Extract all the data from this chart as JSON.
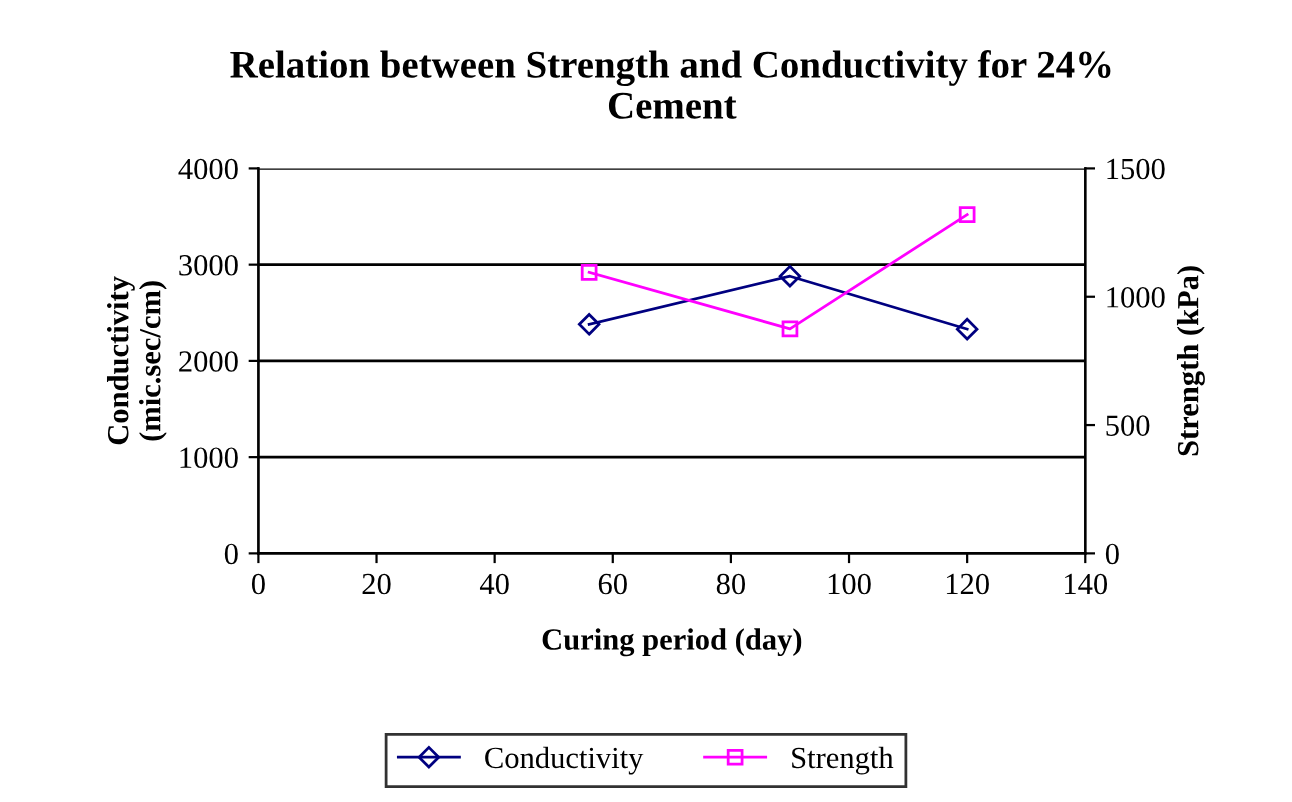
{
  "chart_data": {
    "type": "line",
    "title": "Relation between Strength and Conductivity for 24%\nCement",
    "xlabel": "Curing period (day)",
    "ylabel": "Conductivity\n(mic.sec/cm)",
    "y2label": "Strength (kPa)",
    "series": [
      {
        "name": "Conductivity",
        "color": "#000080",
        "x": [
          56,
          90,
          120
        ],
        "values": [
          2380,
          2880,
          2330
        ],
        "marker": "diamond"
      },
      {
        "name": "Strength",
        "color": "#ff00ff",
        "x": [
          56,
          90,
          120
        ],
        "values": [
          1095,
          875,
          1320
        ],
        "marker": "square",
        "axis": "y2"
      }
    ],
    "xlim": [
      0,
      140
    ],
    "xticks": [
      0,
      20,
      40,
      60,
      80,
      100,
      120,
      140
    ],
    "ylim": [
      0,
      4000
    ],
    "yticks": [
      0,
      1000,
      2000,
      3000,
      4000
    ],
    "y2lim": [
      0,
      1500
    ],
    "y2ticks": [
      0,
      500,
      1000,
      1500
    ],
    "grid": "y",
    "legend": "bottom"
  }
}
